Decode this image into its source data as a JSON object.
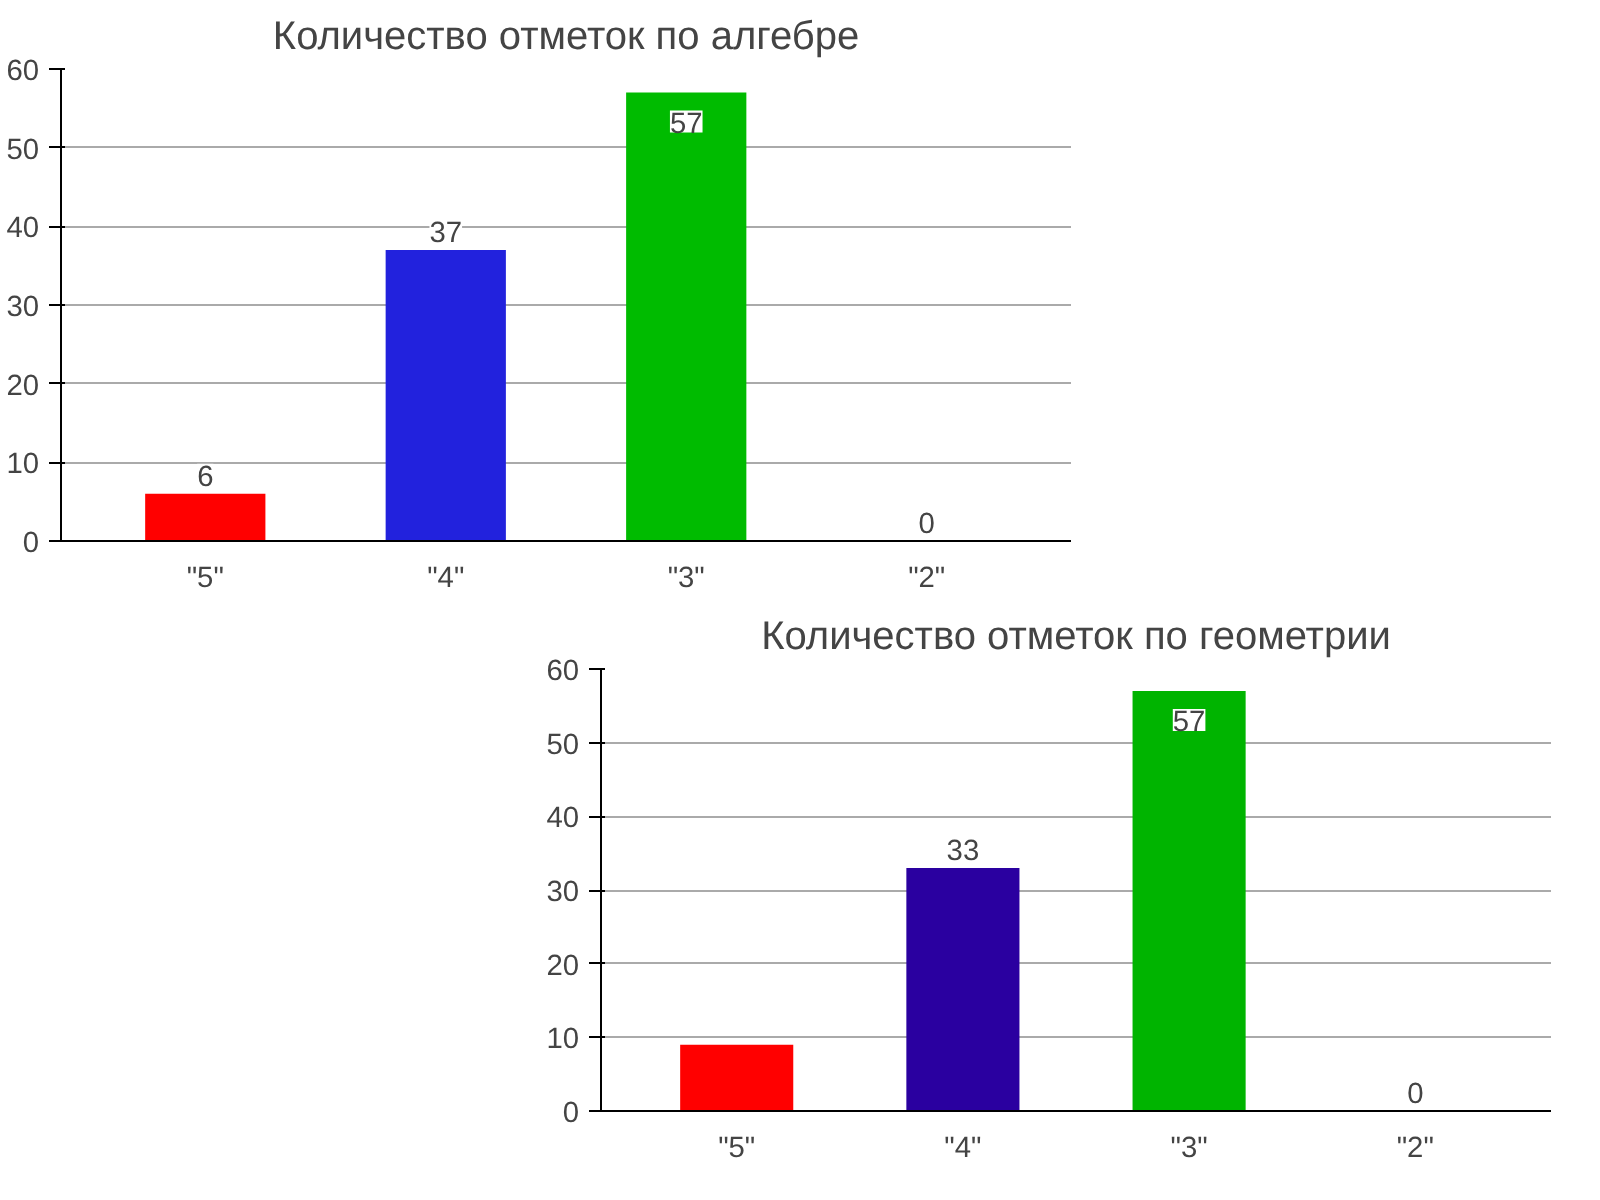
{
  "chart_data": [
    {
      "type": "bar",
      "title": "Количество отметок по алгебре",
      "categories": [
        "\"5\"",
        "\"4\"",
        "\"3\"",
        "\"2\""
      ],
      "values": [
        6,
        37,
        57,
        0
      ],
      "colors": [
        "#ff0000",
        "#2222dd",
        "#00bb00",
        "#808080"
      ],
      "ylim": [
        0,
        60
      ],
      "yticks": [
        0,
        10,
        20,
        30,
        40,
        50,
        60
      ],
      "grid": "y",
      "data_labels": true
    },
    {
      "type": "bar",
      "title": "Количество отметок по геометрии",
      "categories": [
        "\"5\"",
        "\"4\"",
        "\"3\"",
        "\"2\""
      ],
      "values": [
        9,
        33,
        57,
        0
      ],
      "value_labels": [
        null,
        "33",
        "57",
        "0"
      ],
      "colors": [
        "#ff0000",
        "#2a00a0",
        "#00b400",
        "#808080"
      ],
      "ylim": [
        0,
        60
      ],
      "yticks": [
        0,
        10,
        20,
        30,
        40,
        50,
        60
      ],
      "grid": "y"
    }
  ]
}
